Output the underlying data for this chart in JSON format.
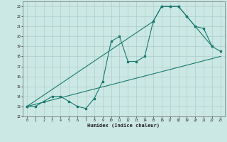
{
  "xlabel": "Humidex (Indice chaleur)",
  "bg_color": "#cce8e4",
  "grid_color": "#aaceca",
  "line_color": "#1a7a6e",
  "xlim": [
    -0.5,
    23.5
  ],
  "ylim": [
    12,
    23.5
  ],
  "yticks": [
    12,
    13,
    14,
    15,
    16,
    17,
    18,
    19,
    20,
    21,
    22,
    23
  ],
  "xticks": [
    0,
    1,
    2,
    3,
    4,
    5,
    6,
    7,
    8,
    9,
    10,
    11,
    12,
    13,
    14,
    15,
    16,
    17,
    18,
    19,
    20,
    21,
    22,
    23
  ],
  "line1_x": [
    0,
    1,
    2,
    3,
    4,
    5,
    6,
    7,
    8,
    9,
    10,
    11,
    12,
    13,
    14,
    15,
    16,
    17,
    18,
    19,
    20,
    21,
    22,
    23
  ],
  "line1_y": [
    13,
    13,
    13.5,
    14,
    14,
    13.5,
    13,
    12.8,
    13.8,
    15.5,
    19.5,
    20,
    17.5,
    17.5,
    18,
    21.5,
    23,
    23,
    23,
    22,
    21,
    20.8,
    19,
    18.5
  ],
  "line2_x": [
    0,
    15,
    16,
    17,
    18,
    19,
    20,
    22
  ],
  "line2_y": [
    13,
    21.5,
    23,
    23,
    23,
    22,
    21,
    19
  ],
  "line3_x": [
    0,
    23
  ],
  "line3_y": [
    13,
    18
  ]
}
